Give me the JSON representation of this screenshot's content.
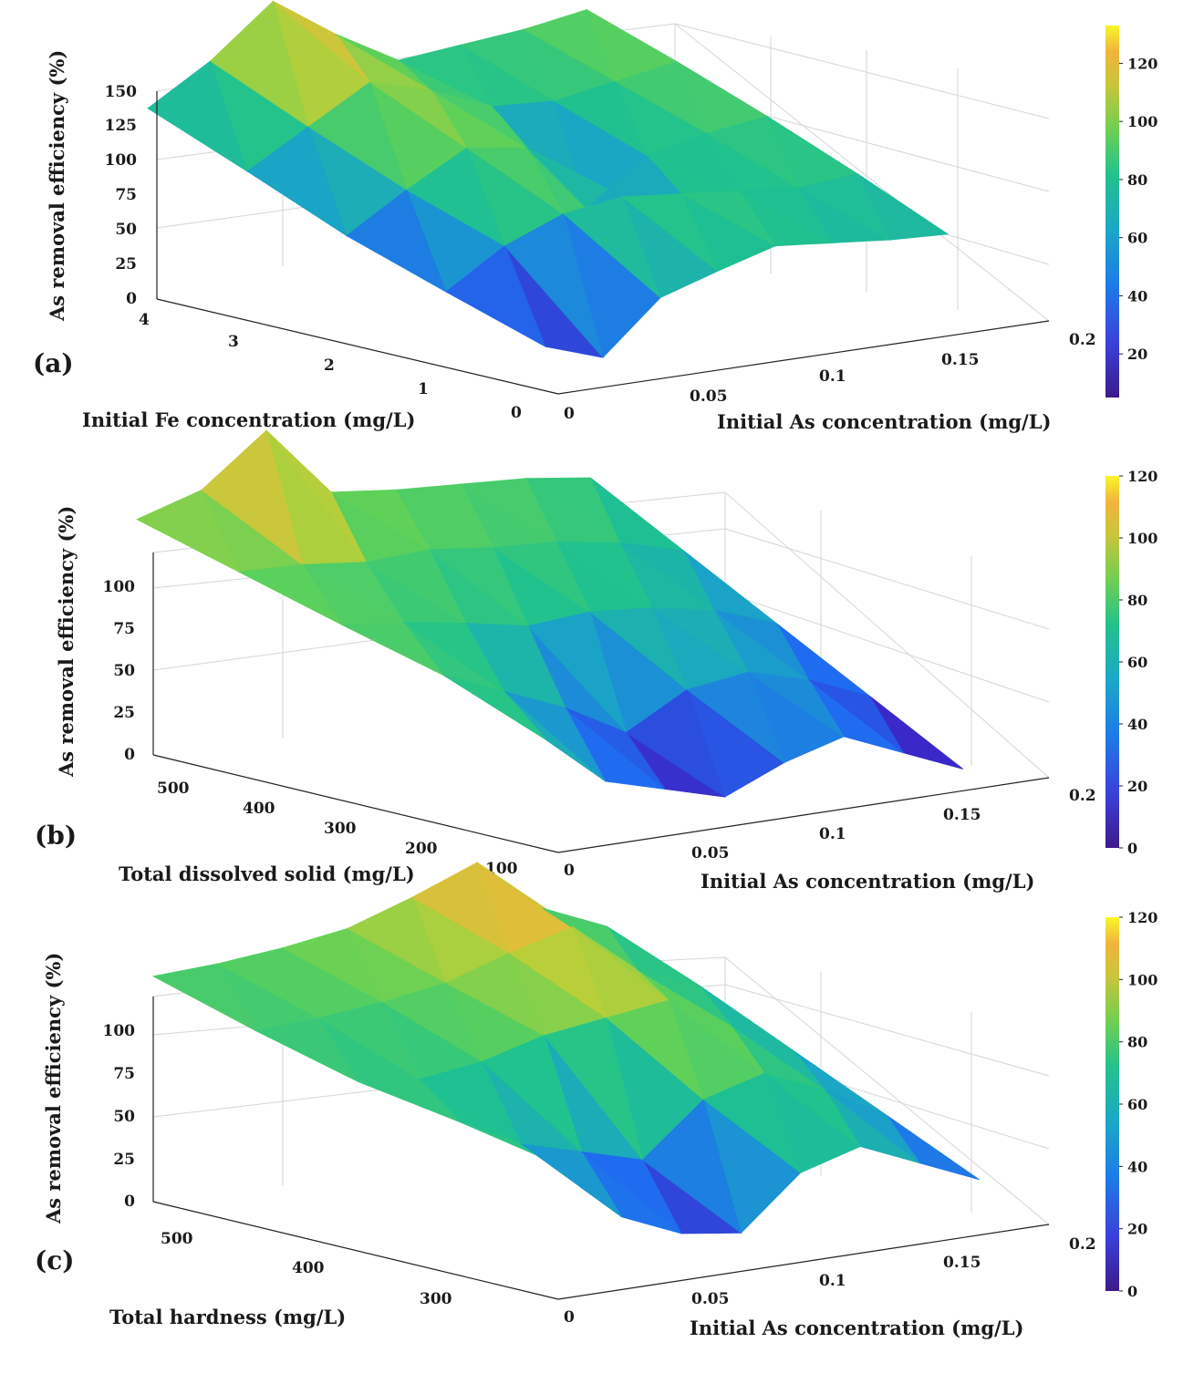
{
  "figure": {
    "caption_fragment": "",
    "colormap": [
      "#440154",
      "#3b28c8",
      "#1f6cf0",
      "#1aa6c4",
      "#20c28e",
      "#60d158",
      "#b8cf3a",
      "#f2b53a",
      "#f9f826"
    ]
  },
  "chart_data": [
    {
      "type": "surface3d",
      "panel_label": "(a)",
      "zlabel": "As removal efficiency (%)",
      "xlabel": "Initial Fe concentration (mg/L)",
      "ylabel": "Initial As concentration (mg/L)",
      "x_ticks": [
        "4",
        "3",
        "2",
        "1",
        "0"
      ],
      "y_ticks": [
        "0",
        "0.05",
        "0.1",
        "0.15",
        "0.2"
      ],
      "z_ticks": [
        "0",
        "25",
        "50",
        "75",
        "100",
        "125",
        "150"
      ],
      "zlim": [
        0,
        150
      ],
      "colorbar_ticks": [
        "20",
        "40",
        "60",
        "80",
        "100",
        "120"
      ],
      "colorbar_range": [
        5,
        133
      ],
      "peak_value": 125,
      "surface_rows": [
        [
          22,
          8,
          45,
          58,
          70,
          66,
          62,
          60
        ],
        [
          28,
          55,
          72,
          78,
          74,
          70,
          66,
          70
        ],
        [
          35,
          62,
          86,
          80,
          30,
          62,
          72,
          78
        ],
        [
          48,
          74,
          100,
          88,
          70,
          68,
          76,
          84
        ],
        [
          60,
          88,
          125,
          95,
          70,
          75,
          80,
          88
        ]
      ]
    },
    {
      "type": "surface3d",
      "panel_label": "(b)",
      "zlabel": "As removal efficiency (%)",
      "xlabel": "Total dissolved solid (mg/L)",
      "ylabel": "Initial As concentration (mg/L)",
      "x_ticks": [
        "500",
        "400",
        "300",
        "200",
        "100"
      ],
      "y_ticks": [
        "0",
        "0.05",
        "0.1",
        "0.15",
        "0.2"
      ],
      "z_ticks": [
        "0",
        "25",
        "50",
        "75",
        "100"
      ],
      "zlim": [
        0,
        120
      ],
      "colorbar_ticks": [
        "0",
        "20",
        "40",
        "60",
        "80",
        "100",
        "120"
      ],
      "colorbar_range": [
        0,
        120
      ],
      "peak_value": 120,
      "surface_rows": [
        [
          60,
          30,
          20,
          10,
          25,
          35,
          20,
          5
        ],
        [
          70,
          55,
          40,
          20,
          40,
          45,
          35,
          20
        ],
        [
          72,
          68,
          62,
          55,
          58,
          55,
          48,
          35
        ],
        [
          75,
          74,
          70,
          72,
          68,
          66,
          60,
          50
        ],
        [
          78,
          90,
          120,
          78,
          74,
          72,
          70,
          65
        ]
      ]
    },
    {
      "type": "surface3d",
      "panel_label": "(c)",
      "zlabel": "As removal efficiency (%)",
      "xlabel": "Total hardness (mg/L)",
      "ylabel": "Initial As concentration (mg/L)",
      "x_ticks": [
        "500",
        "400",
        "300"
      ],
      "y_ticks": [
        "0",
        "0.05",
        "0.1",
        "0.15",
        "0.2"
      ],
      "z_ticks": [
        "0",
        "25",
        "50",
        "75",
        "100"
      ],
      "zlim": [
        0,
        120
      ],
      "colorbar_ticks": [
        "0",
        "20",
        "40",
        "60",
        "80",
        "100",
        "120"
      ],
      "colorbar_range": [
        0,
        120
      ],
      "peak_value": 110,
      "surface_rows": [
        [
          70,
          35,
          20,
          15,
          45,
          55,
          40,
          25
        ],
        [
          68,
          50,
          40,
          30,
          60,
          70,
          55,
          35
        ],
        [
          64,
          60,
          65,
          75,
          80,
          85,
          65,
          45
        ],
        [
          66,
          68,
          72,
          78,
          90,
          100,
          70,
          55
        ],
        [
          70,
          72,
          76,
          82,
          95,
          110,
          78,
          62
        ]
      ]
    }
  ]
}
